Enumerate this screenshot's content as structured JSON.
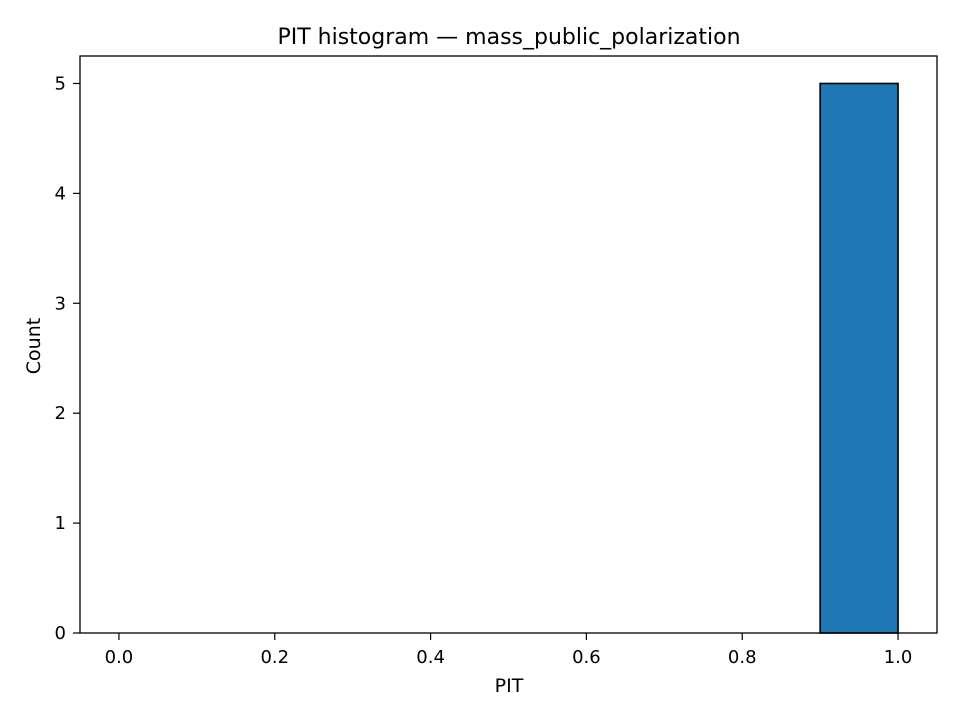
{
  "chart_data": {
    "type": "bar",
    "title": "PIT histogram — mass_public_polarization",
    "xlabel": "PIT",
    "ylabel": "Count",
    "xlim": [
      -0.05,
      1.05
    ],
    "ylim": [
      0,
      5.25
    ],
    "xticks": [
      "0.0",
      "0.2",
      "0.4",
      "0.6",
      "0.8",
      "1.0"
    ],
    "yticks": [
      "0",
      "1",
      "2",
      "3",
      "4",
      "5"
    ],
    "bins": [
      {
        "start": 0.0,
        "end": 0.1,
        "count": 0
      },
      {
        "start": 0.1,
        "end": 0.2,
        "count": 0
      },
      {
        "start": 0.2,
        "end": 0.3,
        "count": 0
      },
      {
        "start": 0.3,
        "end": 0.4,
        "count": 0
      },
      {
        "start": 0.4,
        "end": 0.5,
        "count": 0
      },
      {
        "start": 0.5,
        "end": 0.6,
        "count": 0
      },
      {
        "start": 0.6,
        "end": 0.7,
        "count": 0
      },
      {
        "start": 0.7,
        "end": 0.8,
        "count": 0
      },
      {
        "start": 0.8,
        "end": 0.9,
        "count": 0
      },
      {
        "start": 0.9,
        "end": 1.0,
        "count": 5
      }
    ],
    "bar_color": "#1f77b4",
    "edge_color": "#000000",
    "grid": false,
    "legend": "none"
  }
}
